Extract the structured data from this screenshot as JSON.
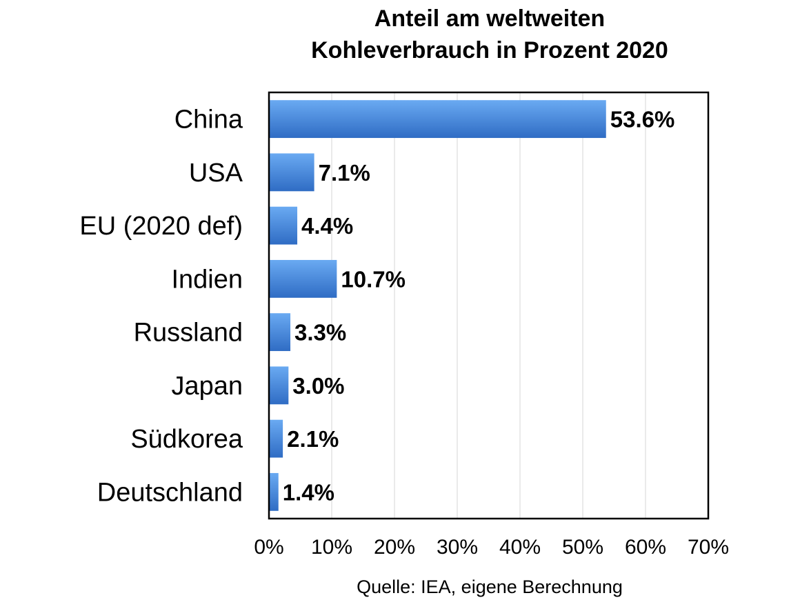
{
  "chart_data": {
    "type": "bar",
    "orientation": "horizontal",
    "title_lines": [
      "Anteil am weltweiten",
      "Kohleverbrauch in Prozent 2020"
    ],
    "categories": [
      "China",
      "USA",
      "EU (2020 def)",
      "Indien",
      "Russland",
      "Japan",
      "Südkorea",
      "Deutschland"
    ],
    "values": [
      53.6,
      7.1,
      4.4,
      10.7,
      3.3,
      3.0,
      2.1,
      1.4
    ],
    "value_labels": [
      "53.6%",
      "7.1%",
      "4.4%",
      "10.7%",
      "3.3%",
      "3.0%",
      "2.1%",
      "1.4%"
    ],
    "xlim": [
      0,
      70
    ],
    "x_ticks": [
      0,
      10,
      20,
      30,
      40,
      50,
      60,
      70
    ],
    "x_tick_labels": [
      "0%",
      "10%",
      "20%",
      "30%",
      "40%",
      "50%",
      "60%",
      "70%"
    ],
    "grid": true,
    "bar_color_top": "#6aaaf2",
    "bar_color_bottom": "#2f6cc4",
    "source": "Quelle: IEA, eigene Berechnung"
  }
}
